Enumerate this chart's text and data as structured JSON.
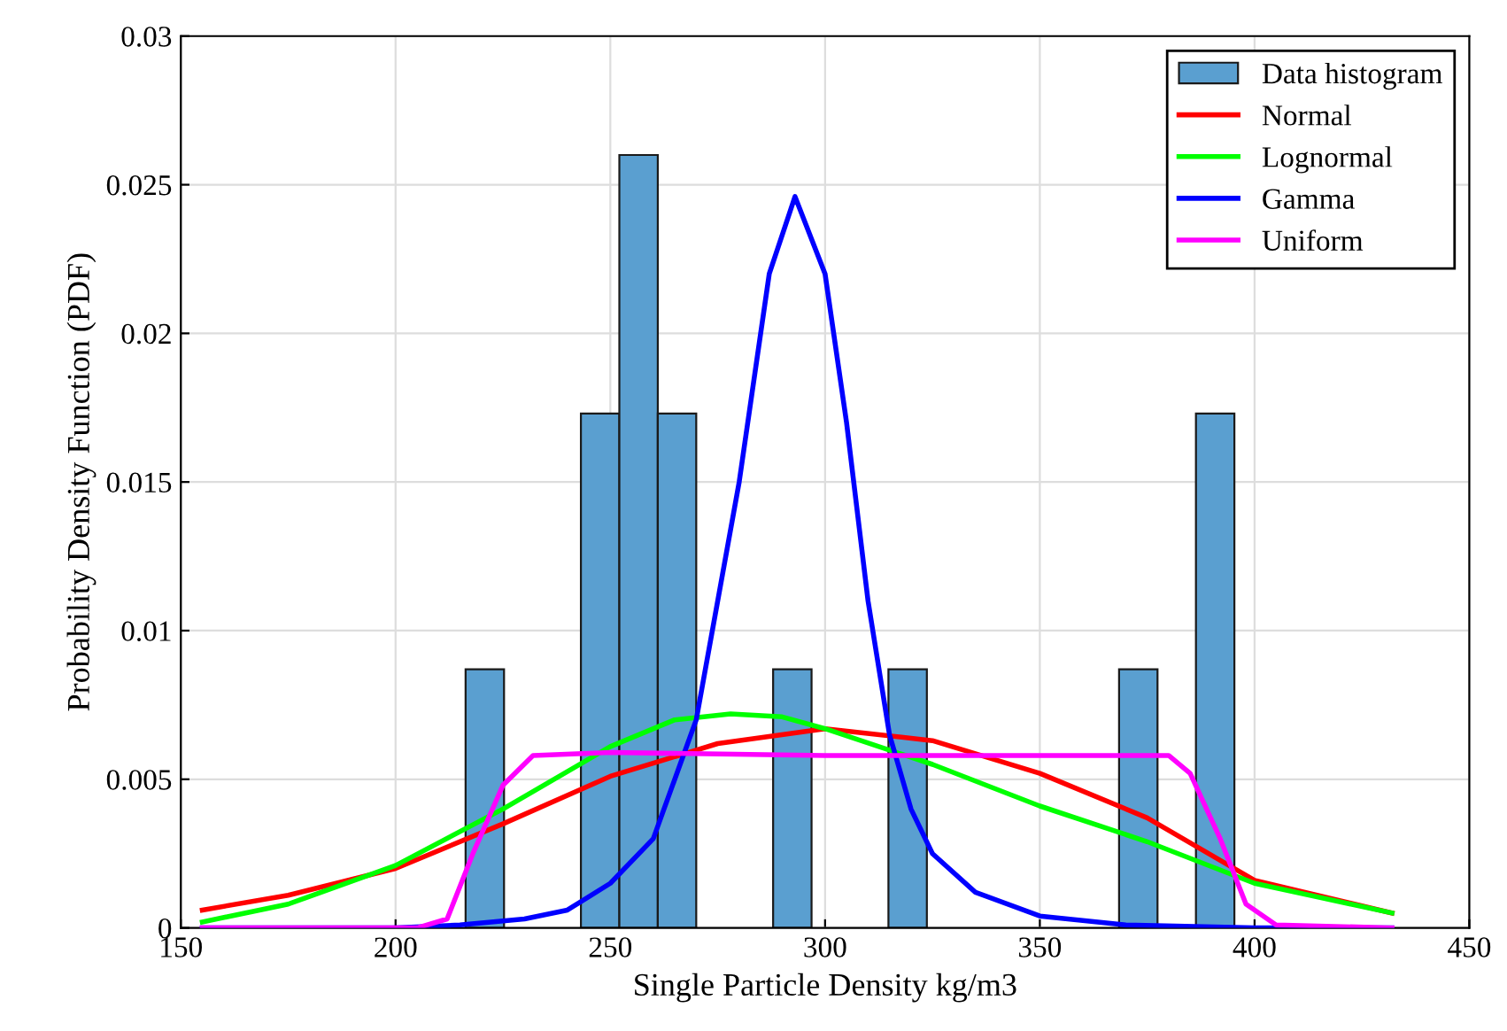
{
  "chart_data": {
    "type": "histogram",
    "xlabel": "Single Particle Density kg/m3",
    "ylabel": "Probability Density Function (PDF)",
    "xlim": [
      150,
      450
    ],
    "xticks": [
      150,
      200,
      250,
      300,
      350,
      400,
      450
    ],
    "ylim": [
      0,
      0.03
    ],
    "yticks": [
      0,
      0.005,
      0.01,
      0.015,
      0.02,
      0.025,
      0.03
    ],
    "grid": true,
    "legend": "top right",
    "series": [
      {
        "name": "Data histogram",
        "color": "#5a9fd0",
        "bins": [
          216.3,
          225.25,
          234.2,
          243.15,
          252.1,
          261.05,
          270.0,
          278.95,
          287.9,
          296.85,
          305.8,
          314.75,
          323.7,
          332.65,
          341.6,
          350.55,
          359.5,
          368.45,
          377.4,
          386.35,
          395.3
        ],
        "values": [
          0.0087,
          0,
          0,
          0.0173,
          0.026,
          0.0173,
          0,
          0,
          0.0087,
          0,
          0,
          0.0087,
          0,
          0,
          0,
          0,
          0,
          0.0087,
          0,
          0.0173
        ]
      },
      {
        "type": "line",
        "name": "Normal",
        "color": "#ff0000",
        "x": [
          155,
          175,
          200,
          225,
          250,
          275,
          300,
          325,
          350,
          375,
          400,
          432
        ],
        "values": [
          0.0006,
          0.0011,
          0.002,
          0.0035,
          0.0051,
          0.0062,
          0.0067,
          0.0063,
          0.0052,
          0.0037,
          0.0016,
          0.0005
        ]
      },
      {
        "type": "line",
        "name": "Lognormal",
        "color": "#00ff00",
        "x": [
          155,
          175,
          200,
          225,
          250,
          265,
          278,
          290,
          300,
          325,
          350,
          375,
          400,
          432
        ],
        "values": [
          0.0002,
          0.0008,
          0.0021,
          0.004,
          0.0061,
          0.007,
          0.0072,
          0.0071,
          0.0067,
          0.0055,
          0.0041,
          0.0029,
          0.0015,
          0.0005
        ]
      },
      {
        "type": "line",
        "name": "Gamma",
        "color": "#0000ff",
        "x": [
          155,
          200,
          215,
          230,
          240,
          250,
          260,
          270,
          280,
          287,
          293,
          300,
          305,
          310,
          315,
          320,
          325,
          335,
          350,
          370,
          400,
          432
        ],
        "values": [
          0,
          0,
          0.0001,
          0.0003,
          0.0006,
          0.0015,
          0.003,
          0.007,
          0.015,
          0.022,
          0.0246,
          0.022,
          0.017,
          0.011,
          0.0065,
          0.004,
          0.0025,
          0.0012,
          0.0004,
          0.0001,
          0,
          0
        ]
      },
      {
        "type": "line",
        "name": "Uniform",
        "color": "#ff00ff",
        "x": [
          155,
          205,
          212,
          218,
          225,
          232,
          250,
          300,
          350,
          380,
          385,
          392,
          398,
          405,
          432
        ],
        "values": [
          0,
          0,
          0.0003,
          0.0025,
          0.0048,
          0.0058,
          0.0059,
          0.0058,
          0.0058,
          0.0058,
          0.0052,
          0.003,
          0.0008,
          0.0001,
          0
        ]
      }
    ]
  }
}
